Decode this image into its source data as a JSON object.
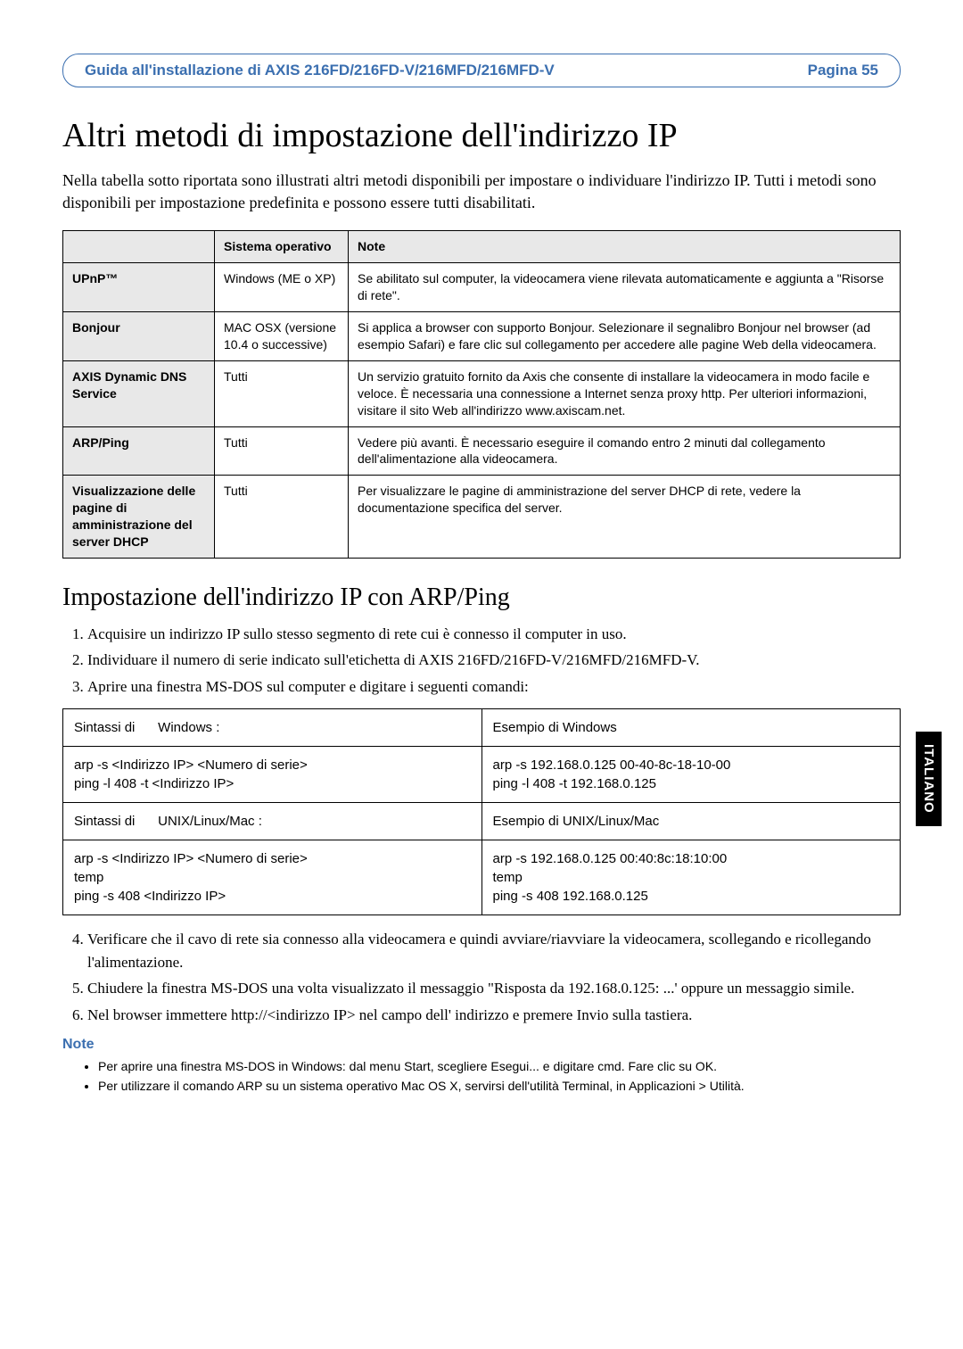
{
  "header": {
    "title": "Guida all'installazione di AXIS 216FD/216FD-V/216MFD/216MFD-V",
    "page": "Pagina 55"
  },
  "main_heading": "Altri metodi di impostazione dell'indirizzo IP",
  "intro": "Nella tabella sotto riportata sono illustrati altri metodi disponibili per impostare o individuare l'indirizzo IP. Tutti i metodi sono disponibili per impostazione predefinita e possono essere tutti disabilitati.",
  "methods_table": {
    "headers": {
      "os": "Sistema operativo",
      "note": "Note"
    },
    "rows": [
      {
        "name": "UPnP™",
        "os": "Windows (ME o XP)",
        "note": "Se abilitato sul computer, la videocamera viene rilevata automaticamente e aggiunta a \"Risorse di rete\"."
      },
      {
        "name": "Bonjour",
        "os": "MAC OSX (versione 10.4 o successive)",
        "note": "Si applica a browser con supporto Bonjour. Selezionare il segnalibro Bonjour nel browser (ad esempio Safari) e fare clic sul collegamento per accedere alle pagine Web della videocamera."
      },
      {
        "name": "AXIS Dynamic DNS Service",
        "os": "Tutti",
        "note": "Un servizio gratuito fornito da Axis che consente di installare la videocamera in modo facile e veloce. È necessaria una connessione a Internet senza proxy http. Per ulteriori informazioni, visitare il sito Web all'indirizzo www.axiscam.net."
      },
      {
        "name": "ARP/Ping",
        "os": "Tutti",
        "note": "Vedere più avanti. È necessario eseguire il comando entro 2 minuti dal collegamento dell'alimentazione alla videocamera."
      },
      {
        "name": "Visualizzazione delle pagine di amministrazione del server DHCP",
        "os": "Tutti",
        "note": "Per visualizzare le pagine di amministrazione del server DHCP di rete, vedere la documentazione specifica del server."
      }
    ]
  },
  "sub_heading": "Impostazione dell'indirizzo IP con ARP/Ping",
  "steps_1_3": [
    "Acquisire un indirizzo IP sullo stesso segmento di rete cui è connesso il computer in uso.",
    "Individuare il numero di serie indicato sull'etichetta di AXIS 216FD/216FD-V/216MFD/216MFD-V.",
    "Aprire una finestra MS-DOS sul computer e digitare i seguenti comandi:"
  ],
  "commands": {
    "win_syntax_label": "Sintassi di",
    "win_syntax_os": "Windows :",
    "win_example_label": "Esempio di Windows",
    "win_syntax_body": "arp -s <Indirizzo IP> <Numero di serie>\nping -l 408 -t <Indirizzo IP>",
    "win_example_body": "arp -s 192.168.0.125 00-40-8c-18-10-00\nping -l 408 -t 192.168.0.125",
    "unix_syntax_label": "Sintassi di",
    "unix_syntax_os": "UNIX/Linux/Mac   :",
    "unix_example_label": "Esempio di UNIX/Linux/Mac",
    "unix_syntax_body": "arp -s <Indirizzo IP> <Numero di serie>\ntemp\nping -s 408 <Indirizzo IP>",
    "unix_example_body": "arp -s 192.168.0.125 00:40:8c:18:10:00\ntemp\nping -s 408 192.168.0.125"
  },
  "steps_4_6": [
    "Verificare che il cavo di rete sia connesso alla videocamera e quindi avviare/riavviare la videocamera, scollegando e ricollegando l'alimentazione.",
    "Chiudere la finestra MS-DOS una volta visualizzato il messaggio \"Risposta da 192.168.0.125: ...' oppure un messaggio simile.",
    "Nel browser immettere http://<indirizzo IP> nel campo dell' indirizzo e premere Invio sulla tastiera."
  ],
  "note_heading": "Note",
  "notes": [
    "Per aprire una finestra MS-DOS in Windows: dal menu Start, scegliere Esegui... e digitare cmd. Fare clic su OK.",
    "Per utilizzare il comando ARP su un sistema operativo Mac OS X, servirsi dell'utilità Terminal, in Applicazioni > Utilità."
  ],
  "side_tab": "ITALIANO"
}
